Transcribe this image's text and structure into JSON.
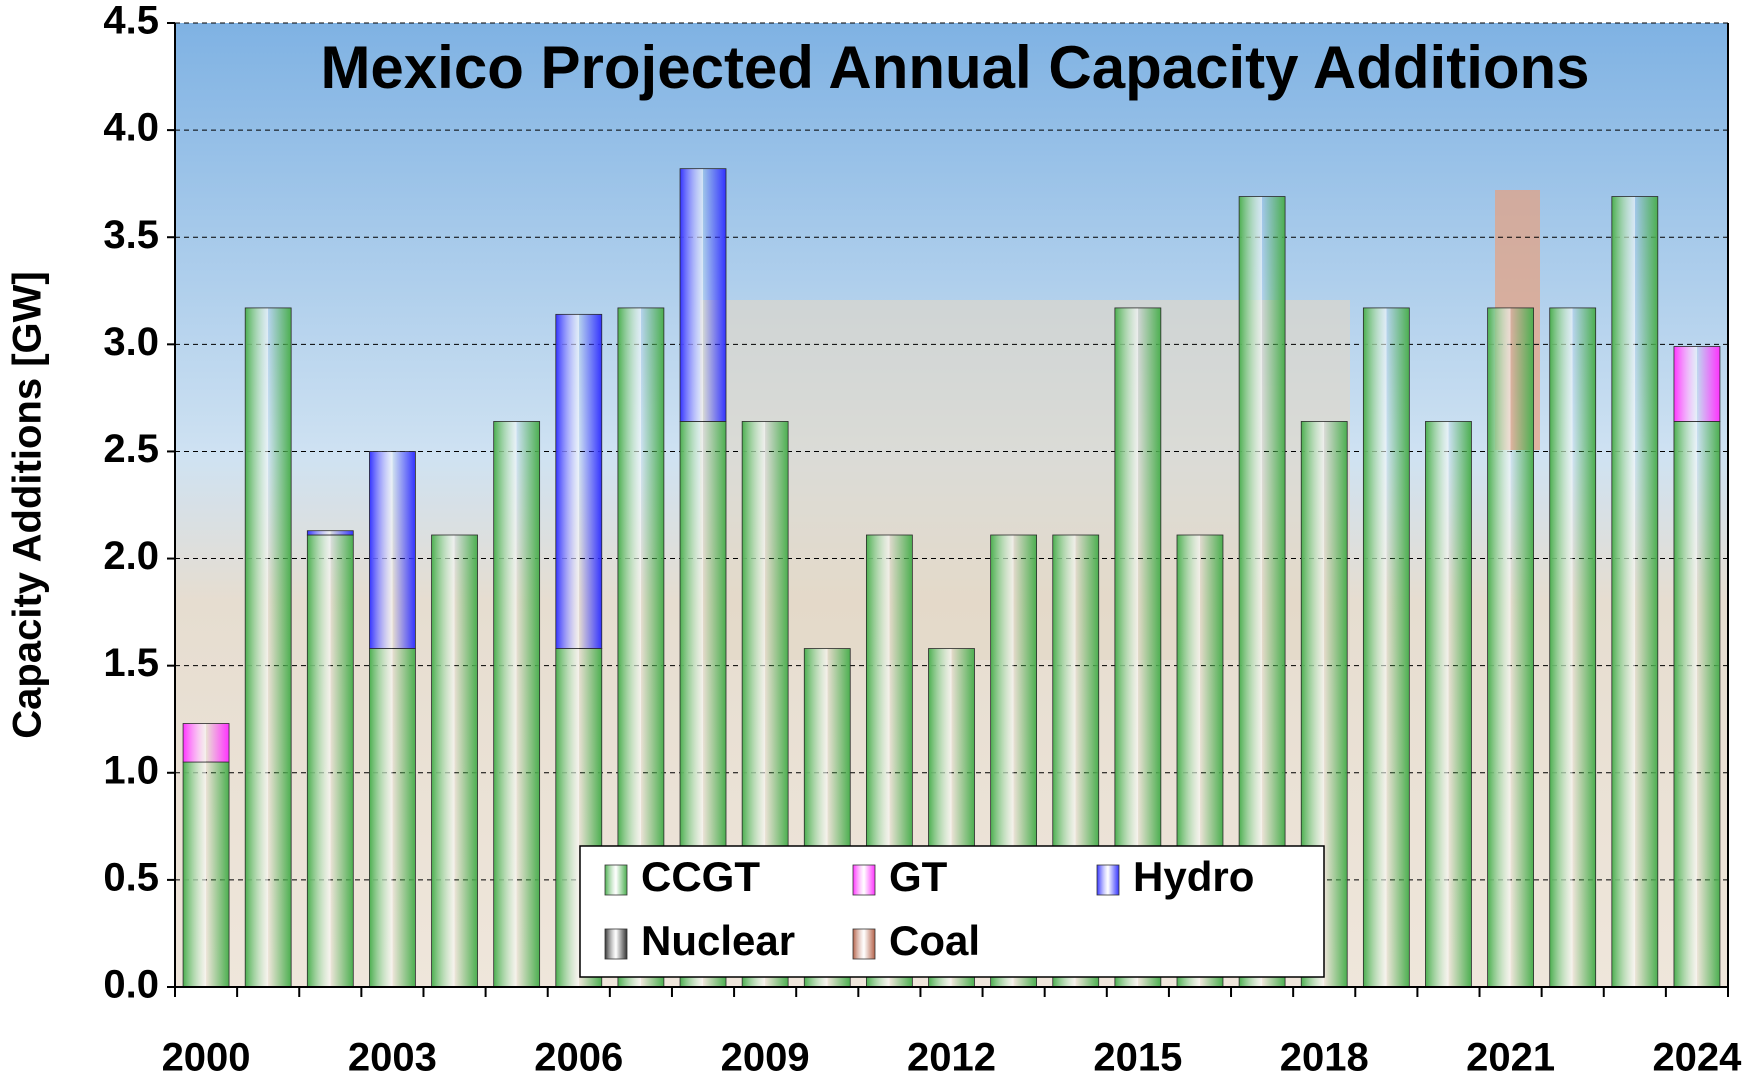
{
  "chart_data": {
    "type": "stacked-bar",
    "title": "Mexico Projected Annual Capacity Additions",
    "y_label": "Capacity Additions [GW]",
    "categories": [
      "2000",
      null,
      null,
      "2003",
      null,
      null,
      "2006",
      null,
      null,
      "2009",
      null,
      null,
      "2012",
      null,
      null,
      "2015",
      null,
      null,
      "2018",
      null,
      null,
      "2021",
      null,
      null,
      "2024"
    ],
    "series": [
      {
        "name": "CCGT",
        "color": "#4caf50",
        "values": [
          1.05,
          3.17,
          2.11,
          1.58,
          2.11,
          2.64,
          1.58,
          3.17,
          2.64,
          2.64,
          1.58,
          2.11,
          1.58,
          2.11,
          2.11,
          3.17,
          2.11,
          3.69,
          2.64,
          3.17,
          2.64,
          3.17,
          3.17,
          3.69,
          2.64
        ]
      },
      {
        "name": "GT",
        "color": "#ff33ff",
        "values": [
          0.18,
          0,
          0,
          0,
          0,
          0,
          0,
          0,
          0,
          0,
          0,
          0,
          0,
          0,
          0,
          0,
          0,
          0,
          0,
          0,
          0,
          0,
          0,
          0,
          0.35
        ]
      },
      {
        "name": "Hydro",
        "color": "#3333ff",
        "values": [
          0,
          0,
          0.02,
          0.92,
          0,
          0,
          1.56,
          0,
          1.18,
          0,
          0,
          0,
          0,
          0,
          0,
          0,
          0,
          0,
          0,
          0,
          0,
          0,
          0,
          0,
          0
        ]
      },
      {
        "name": "Nuclear",
        "color": "#333333",
        "values": [
          0,
          0,
          0,
          0,
          0,
          0,
          0,
          0,
          0,
          0,
          0,
          0,
          0,
          0,
          0,
          0,
          0,
          0,
          0,
          0,
          0,
          0,
          0,
          0,
          0
        ]
      },
      {
        "name": "Coal",
        "color": "#b5634a",
        "values": [
          0,
          0,
          0,
          0,
          0,
          0,
          0,
          0,
          0,
          0,
          0,
          0,
          0,
          0,
          0,
          0,
          0,
          0,
          0,
          0,
          0,
          0,
          0,
          0,
          0
        ]
      }
    ],
    "ylim": [
      0,
      4.5
    ],
    "yticks": [
      {
        "value": 0,
        "label": "0.0"
      },
      {
        "value": 0.5,
        "label": "0.5"
      },
      {
        "value": 1,
        "label": "1.0"
      },
      {
        "value": 1.5,
        "label": "1.5"
      },
      {
        "value": 2,
        "label": "2.0"
      },
      {
        "value": 2.5,
        "label": "2.5"
      },
      {
        "value": 3,
        "label": "3.0"
      },
      {
        "value": 3.5,
        "label": "3.5"
      },
      {
        "value": 4,
        "label": "4.0"
      },
      {
        "value": 4.5,
        "label": "4.5"
      }
    ],
    "grid": true
  }
}
